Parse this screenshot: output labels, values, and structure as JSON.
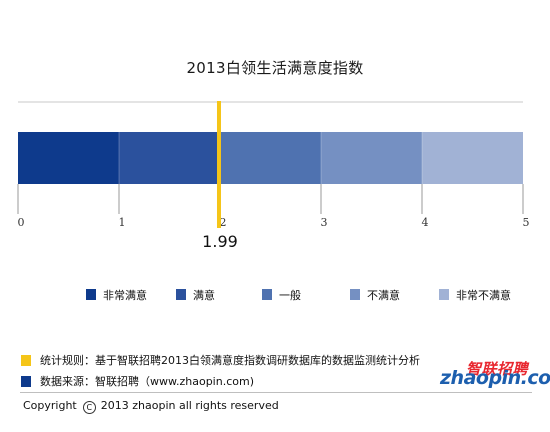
{
  "chart_data": {
    "type": "bar",
    "orientation": "horizontal-stacked-scale",
    "title": "2013白领生活满意度指数",
    "xlim": [
      0,
      5
    ],
    "ticks": [
      "0",
      "1",
      "2",
      "3",
      "4",
      "5"
    ],
    "segments": [
      {
        "name": "非常满意",
        "from": 0,
        "to": 1,
        "color": "#0e3a8c"
      },
      {
        "name": "满意",
        "from": 1,
        "to": 2,
        "color": "#2b519d"
      },
      {
        "name": "一般",
        "from": 2,
        "to": 3,
        "color": "#4f72b0"
      },
      {
        "name": "不满意",
        "from": 3,
        "to": 4,
        "color": "#7590c2"
      },
      {
        "name": "非常不满意",
        "from": 4,
        "to": 5,
        "color": "#a1b2d5"
      }
    ],
    "marker": {
      "value": 1.99,
      "label": "1.99",
      "color": "#f5c518"
    },
    "grid": false,
    "legend_placement": "bottom"
  },
  "notes": {
    "rule": "统计规则：基于智联招聘2013白领满意度指数调研数据库的数据监测统计分析",
    "rule_color": "#f5c518",
    "source": "数据来源：智联招聘（www.zhaopin.com)",
    "source_color": "#0e3a8c"
  },
  "logo": {
    "cn": "智联招聘",
    "en": "zhaopin.com",
    "cn_color": "#e8272f",
    "en_color": "#1d5fae"
  },
  "footer": {
    "copyright_word": "Copyright",
    "copyright_symbol": "C",
    "copyright_text": "2013 zhaopin all rights reserved"
  }
}
